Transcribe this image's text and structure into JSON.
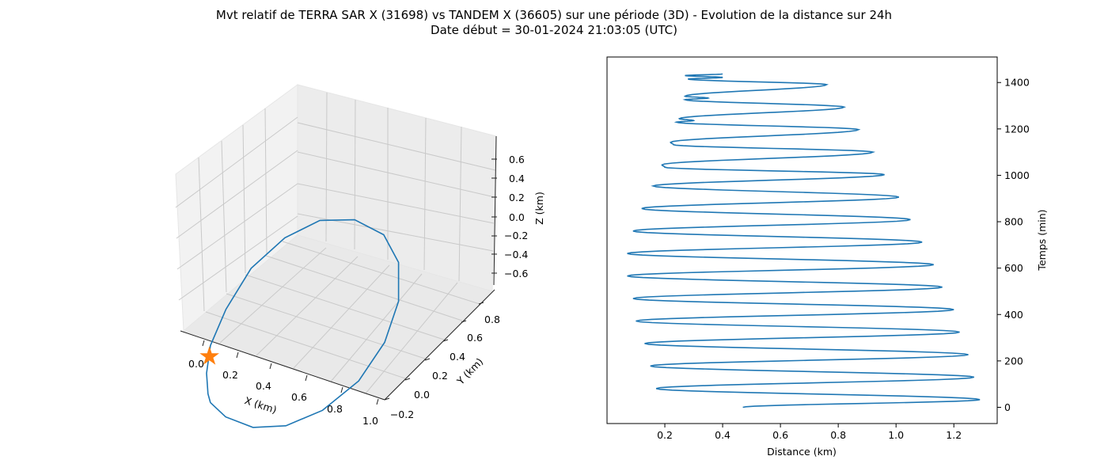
{
  "figure": {
    "title_line1": "Mvt relatif de TERRA SAR X (31698) vs TANDEM X (36605) sur une période (3D) - Evolution de la distance sur 24h",
    "title_line2": "Date début = 30-01-2024 21:03:05 (UTC)"
  },
  "colors": {
    "series": "#1f77b4",
    "marker": "#ff7f0e",
    "pane": "#f2f2f2",
    "grid": "#d0d0d0"
  },
  "chart_data": [
    {
      "type": "line3d",
      "xlabel": "X (km)",
      "ylabel": "Y (km)",
      "zlabel": "Z (km)",
      "x_ticks": [
        "0.0",
        "0.2",
        "0.4",
        "0.6",
        "0.8",
        "1.0"
      ],
      "y_ticks": [
        "−0.2",
        "0.0",
        "0.2",
        "0.4",
        "0.6",
        "0.8"
      ],
      "z_ticks": [
        "0.6",
        "0.4",
        "0.2",
        "0.0",
        "−0.2",
        "−0.4",
        "−0.6"
      ],
      "xlim": [
        -0.05,
        1.0
      ],
      "ylim": [
        -0.25,
        0.95
      ],
      "zlim": [
        -0.75,
        0.75
      ],
      "grid": true,
      "marker": {
        "shape": "star",
        "label": ""
      },
      "series": [
        {
          "points_note": "",
          "points": [
            [
              0.08,
              -0.08,
              -0.55
            ],
            [
              0.18,
              -0.1,
              -0.62
            ],
            [
              0.33,
              -0.08,
              -0.66
            ],
            [
              0.48,
              0.0,
              -0.63
            ],
            [
              0.62,
              0.14,
              -0.52
            ],
            [
              0.73,
              0.33,
              -0.33
            ],
            [
              0.78,
              0.52,
              -0.08
            ],
            [
              0.77,
              0.69,
              0.18
            ],
            [
              0.7,
              0.82,
              0.42
            ],
            [
              0.58,
              0.88,
              0.58
            ],
            [
              0.42,
              0.86,
              0.66
            ],
            [
              0.27,
              0.76,
              0.66
            ],
            [
              0.15,
              0.6,
              0.56
            ],
            [
              0.06,
              0.4,
              0.38
            ],
            [
              0.02,
              0.2,
              0.12
            ],
            [
              0.01,
              0.05,
              -0.12
            ],
            [
              0.03,
              -0.03,
              -0.32
            ],
            [
              0.06,
              -0.07,
              -0.48
            ],
            [
              0.08,
              -0.08,
              -0.55
            ]
          ]
        }
      ],
      "marker_point": [
        0.02,
        0.02,
        -0.2
      ]
    },
    {
      "type": "line",
      "xlabel": "Distance (km)",
      "ylabel": "Temps (min)",
      "xlim": [
        0.0,
        1.35
      ],
      "ylim": [
        -70,
        1510
      ],
      "x_ticks": [
        0.2,
        0.4,
        0.6,
        0.8,
        1.0,
        1.2
      ],
      "x_tick_labels": [
        "0.2",
        "0.4",
        "0.6",
        "0.8",
        "1.0",
        "1.2"
      ],
      "y_ticks": [
        0,
        200,
        400,
        600,
        800,
        1000,
        1200,
        1400
      ],
      "y_tick_labels": [
        "0",
        "200",
        "400",
        "600",
        "800",
        "1000",
        "1200",
        "1400"
      ],
      "grid": false,
      "series": [
        {
          "name": "",
          "extrema": [
            [
              0.47,
              0
            ],
            [
              1.29,
              33
            ],
            [
              0.17,
              81
            ],
            [
              1.27,
              130
            ],
            [
              0.15,
              178
            ],
            [
              1.25,
              227
            ],
            [
              0.13,
              275
            ],
            [
              1.22,
              324
            ],
            [
              0.1,
              372
            ],
            [
              1.2,
              421
            ],
            [
              0.09,
              469
            ],
            [
              1.16,
              518
            ],
            [
              0.07,
              566
            ],
            [
              1.13,
              615
            ],
            [
              0.07,
              663
            ],
            [
              1.09,
              712
            ],
            [
              0.09,
              760
            ],
            [
              1.05,
              809
            ],
            [
              0.12,
              857
            ],
            [
              1.01,
              906
            ],
            [
              0.16,
              954
            ],
            [
              0.96,
              1003
            ],
            [
              0.2,
              1035
            ],
            [
              0.19,
              1045
            ],
            [
              0.92,
              1100
            ],
            [
              0.23,
              1132
            ],
            [
              0.22,
              1142
            ],
            [
              0.87,
              1197
            ],
            [
              0.24,
              1229
            ],
            [
              0.3,
              1236
            ],
            [
              0.25,
              1244
            ],
            [
              0.82,
              1294
            ],
            [
              0.27,
              1326
            ],
            [
              0.35,
              1333
            ],
            [
              0.27,
              1341
            ],
            [
              0.76,
              1391
            ],
            [
              0.28,
              1415
            ],
            [
              0.4,
              1422
            ],
            [
              0.27,
              1430
            ],
            [
              0.4,
              1437
            ]
          ]
        }
      ]
    }
  ]
}
